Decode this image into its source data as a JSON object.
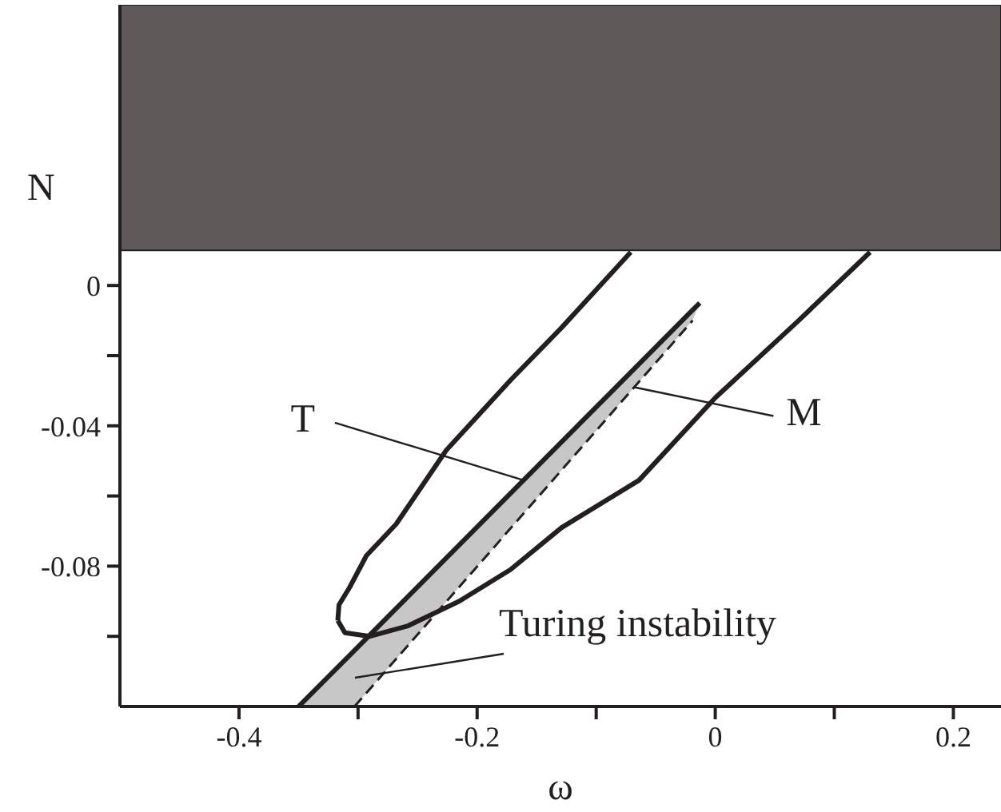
{
  "chart_data": {
    "type": "line",
    "xlabel": "ω",
    "ylabel": "N",
    "xlim": [
      -0.5,
      0.24
    ],
    "ylim": [
      -0.12,
      0.08
    ],
    "xticks": [
      -0.4,
      {
        "value": -0.3,
        "label": null
      },
      -0.2,
      {
        "value": -0.1,
        "label": null
      },
      0,
      {
        "value": 0.1,
        "label": null
      },
      0.2
    ],
    "yticks": [
      {
        "value": -0.1,
        "label": null
      },
      -0.08,
      {
        "value": -0.06,
        "label": null
      },
      -0.04,
      {
        "value": -0.02,
        "label": null
      },
      0
    ],
    "grid": false,
    "marker": "none",
    "bands": [
      {
        "axis": "y",
        "from": 0.01,
        "to": 0.08,
        "color": "#5f5a59"
      }
    ],
    "series": [
      {
        "color": "#231f20",
        "x": [
          -0.35,
          -0.303,
          -0.019,
          -0.013
        ],
        "values": [
          -0.12,
          -0.104,
          -0.007,
          -0.005
        ],
        "lower": [
          -0.12,
          -0.12,
          -0.01,
          -0.005
        ],
        "upper": [
          -0.12,
          -0.104,
          -0.007,
          -0.005
        ]
      },
      {
        "color": "#231f20",
        "line_style": "dashed",
        "x": [
          -0.303,
          -0.019
        ],
        "values": [
          -0.12,
          -0.01
        ]
      },
      {
        "color": "#231f20",
        "x": [
          -0.317,
          -0.316,
          -0.307,
          -0.293,
          -0.268,
          -0.226,
          -0.172,
          -0.129,
          -0.071
        ],
        "values": [
          -0.0955,
          -0.091,
          -0.086,
          -0.077,
          -0.068,
          -0.047,
          -0.027,
          -0.012,
          0.0095
        ]
      },
      {
        "color": "#231f20",
        "x": [
          -0.317,
          -0.311,
          -0.29,
          -0.258,
          -0.215,
          -0.172,
          -0.129,
          -0.064,
          0,
          0.07,
          0.13
        ],
        "values": [
          -0.0955,
          -0.099,
          -0.1,
          -0.097,
          -0.09,
          -0.081,
          -0.069,
          -0.0555,
          -0.032,
          -0.01,
          0.0095
        ]
      }
    ],
    "annotations": [
      {
        "text": "T",
        "x": -0.161,
        "y": -0.0555
      },
      {
        "text": "M",
        "x": -0.068,
        "y": -0.029
      },
      "Turing instability"
    ]
  }
}
